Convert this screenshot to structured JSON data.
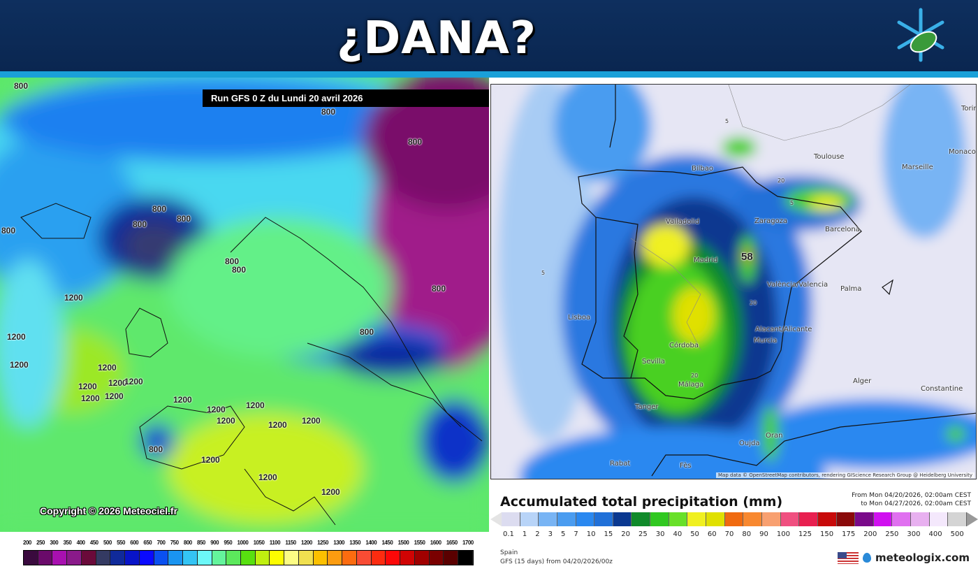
{
  "header": {
    "title": "¿DANA?",
    "logo_icon": "snowflake-leaf-logo"
  },
  "left_map": {
    "run_title": "Run GFS 0 Z du Lundi 20 avril 2026",
    "copyright": "Copyright © 2026 Meteociel.fr",
    "contour_labels": [
      "800",
      "800",
      "800",
      "800",
      "800",
      "800",
      "800",
      "800",
      "800",
      "800",
      "800",
      "800",
      "1200",
      "1200",
      "1200",
      "1200",
      "1200",
      "1200",
      "1200",
      "1200",
      "1200",
      "1200",
      "1200",
      "1200",
      "1200",
      "1200",
      "1200",
      "1200",
      "1200",
      "1200"
    ],
    "colorbar": {
      "labels": [
        "200",
        "250",
        "300",
        "350",
        "400",
        "450",
        "500",
        "550",
        "600",
        "650",
        "700",
        "750",
        "800",
        "850",
        "900",
        "950",
        "1000",
        "1050",
        "1100",
        "1150",
        "1200",
        "1250",
        "1300",
        "1350",
        "1400",
        "1450",
        "1500",
        "1550",
        "1600",
        "1650",
        "1700"
      ],
      "colors": [
        "#3a0a3e",
        "#6a0a6a",
        "#a810b0",
        "#8a1a8a",
        "#6a0a3a",
        "#343a62",
        "#102a9a",
        "#0814c8",
        "#0a0aff",
        "#0a50f0",
        "#1a94f0",
        "#34c4f4",
        "#6cf8f8",
        "#64f49c",
        "#5ce85c",
        "#58e010",
        "#c0f010",
        "#fcfc00",
        "#fcfc84",
        "#f0e050",
        "#fcc000",
        "#fc9c10",
        "#fc6c10",
        "#f84c34",
        "#fc2c10",
        "#fc0808",
        "#d00404",
        "#a00000",
        "#7a0000",
        "#5a0000",
        "#000000"
      ]
    }
  },
  "right_map": {
    "cities": [
      "Toulouse",
      "Marseille",
      "Monaco",
      "Torino",
      "Bilbao",
      "Zaragoza",
      "Barcelona",
      "Valladolid",
      "Madrid",
      "València/Valencia",
      "Palma",
      "Lisboa",
      "Alacant/Alicante",
      "Murcia",
      "Córdoba",
      "Sevilla",
      "Málaga",
      "Alger",
      "Constantine",
      "Tanger",
      "Oran",
      "Oujda",
      "Rabat",
      "Fès"
    ],
    "max_value_label": "58",
    "contour_values": [
      "5",
      "5",
      "20",
      "20",
      "20",
      "5"
    ],
    "attribution": "Map data © OpenStreetMap contributors, rendering GIScience Research Group @ Heidelberg University"
  },
  "legend": {
    "title": "Accumulated total precipitation (mm)",
    "from": "From Mon 04/20/2026, 02:00am CEST",
    "to": "to Mon 04/27/2026, 02:00am CEST",
    "labels": [
      "0.1",
      "1",
      "2",
      "3",
      "5",
      "7",
      "10",
      "15",
      "20",
      "25",
      "30",
      "40",
      "50",
      "60",
      "70",
      "80",
      "90",
      "100",
      "125",
      "150",
      "175",
      "200",
      "250",
      "300",
      "400",
      "500"
    ],
    "colors": [
      "#dcdcf0",
      "#b8d4f8",
      "#78b4f4",
      "#4a9cf0",
      "#2a88f0",
      "#2070d8",
      "#0a3890",
      "#108a2a",
      "#30c820",
      "#68e028",
      "#f0f020",
      "#e0e000",
      "#f06a10",
      "#f88830",
      "#f8a070",
      "#f05080",
      "#e82050",
      "#c80a0a",
      "#8a0a0a",
      "#7a0a8a",
      "#d010f0",
      "#e070f0",
      "#e8b0f0",
      "#f4e8fc",
      "#d4d4d4"
    ],
    "region": "Spain",
    "model": "GFS (15 days) from 04/20/2026/00z",
    "brand": "meteologix.com",
    "flag_icon": "us-flag-icon"
  }
}
